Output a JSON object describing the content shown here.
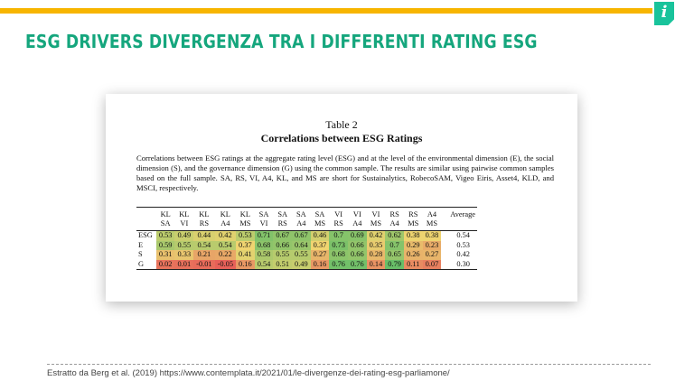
{
  "slide": {
    "title": "ESG DRIVERS DIVERGENZA TRA I DIFFERENTI RATING ESG",
    "info_icon": "i",
    "source": "Estratto da Berg et al. (2019) https://www.contemplata.it/2021/01/le-divergenze-dei-rating-esg-parliamone/"
  },
  "colors": {
    "accent_bar": "#f7b500",
    "title_green": "#15a67d",
    "info_badge": "#19c39b"
  },
  "paper": {
    "table_label": "Table 2",
    "caption": "Correlations between ESG Ratings",
    "description": "Correlations between ESG ratings at the aggregate rating level (ESG) and at the level of the environmental dimension (E), the social dimension (S), and the governance dimension (G) using the common sample. The results are similar using pairwise common samples based on the full sample. SA, RS, VI, A4, KL, and MS are short for Sustainalytics, RobecoSAM, Vigeo Eiris, Asset4, KLD, and MSCI, respectively.",
    "columns_top": [
      "KL",
      "KL",
      "KL",
      "KL",
      "KL",
      "SA",
      "SA",
      "SA",
      "SA",
      "VI",
      "VI",
      "VI",
      "RS",
      "RS",
      "A4"
    ],
    "columns_bottom": [
      "SA",
      "VI",
      "RS",
      "A4",
      "MS",
      "VI",
      "RS",
      "A4",
      "MS",
      "RS",
      "A4",
      "MS",
      "A4",
      "MS",
      "MS"
    ],
    "average_header": "Average",
    "rows": [
      {
        "label": "ESG",
        "values": [
          "0.53",
          "0.49",
          "0.44",
          "0.42",
          "0.53",
          "0.71",
          "0.67",
          "0.67",
          "0.46",
          "0.7",
          "0.69",
          "0.42",
          "0.62",
          "0.38",
          "0.38"
        ],
        "average": "0.54"
      },
      {
        "label": "E",
        "values": [
          "0.59",
          "0.55",
          "0.54",
          "0.54",
          "0.37",
          "0.68",
          "0.66",
          "0.64",
          "0.37",
          "0.73",
          "0.66",
          "0.35",
          "0.7",
          "0.29",
          "0.23"
        ],
        "average": "0.53"
      },
      {
        "label": "S",
        "values": [
          "0.31",
          "0.33",
          "0.21",
          "0.22",
          "0.41",
          "0.58",
          "0.55",
          "0.55",
          "0.27",
          "0.68",
          "0.66",
          "0.28",
          "0.65",
          "0.26",
          "0.27"
        ],
        "average": "0.42"
      },
      {
        "label": "G",
        "values": [
          "0.02",
          "0.01",
          "-0.01",
          "-0.05",
          "0.16",
          "0.54",
          "0.51",
          "0.49",
          "0.16",
          "0.76",
          "0.76",
          "0.14",
          "0.79",
          "0.11",
          "0.07"
        ],
        "average": "0.30"
      }
    ]
  }
}
